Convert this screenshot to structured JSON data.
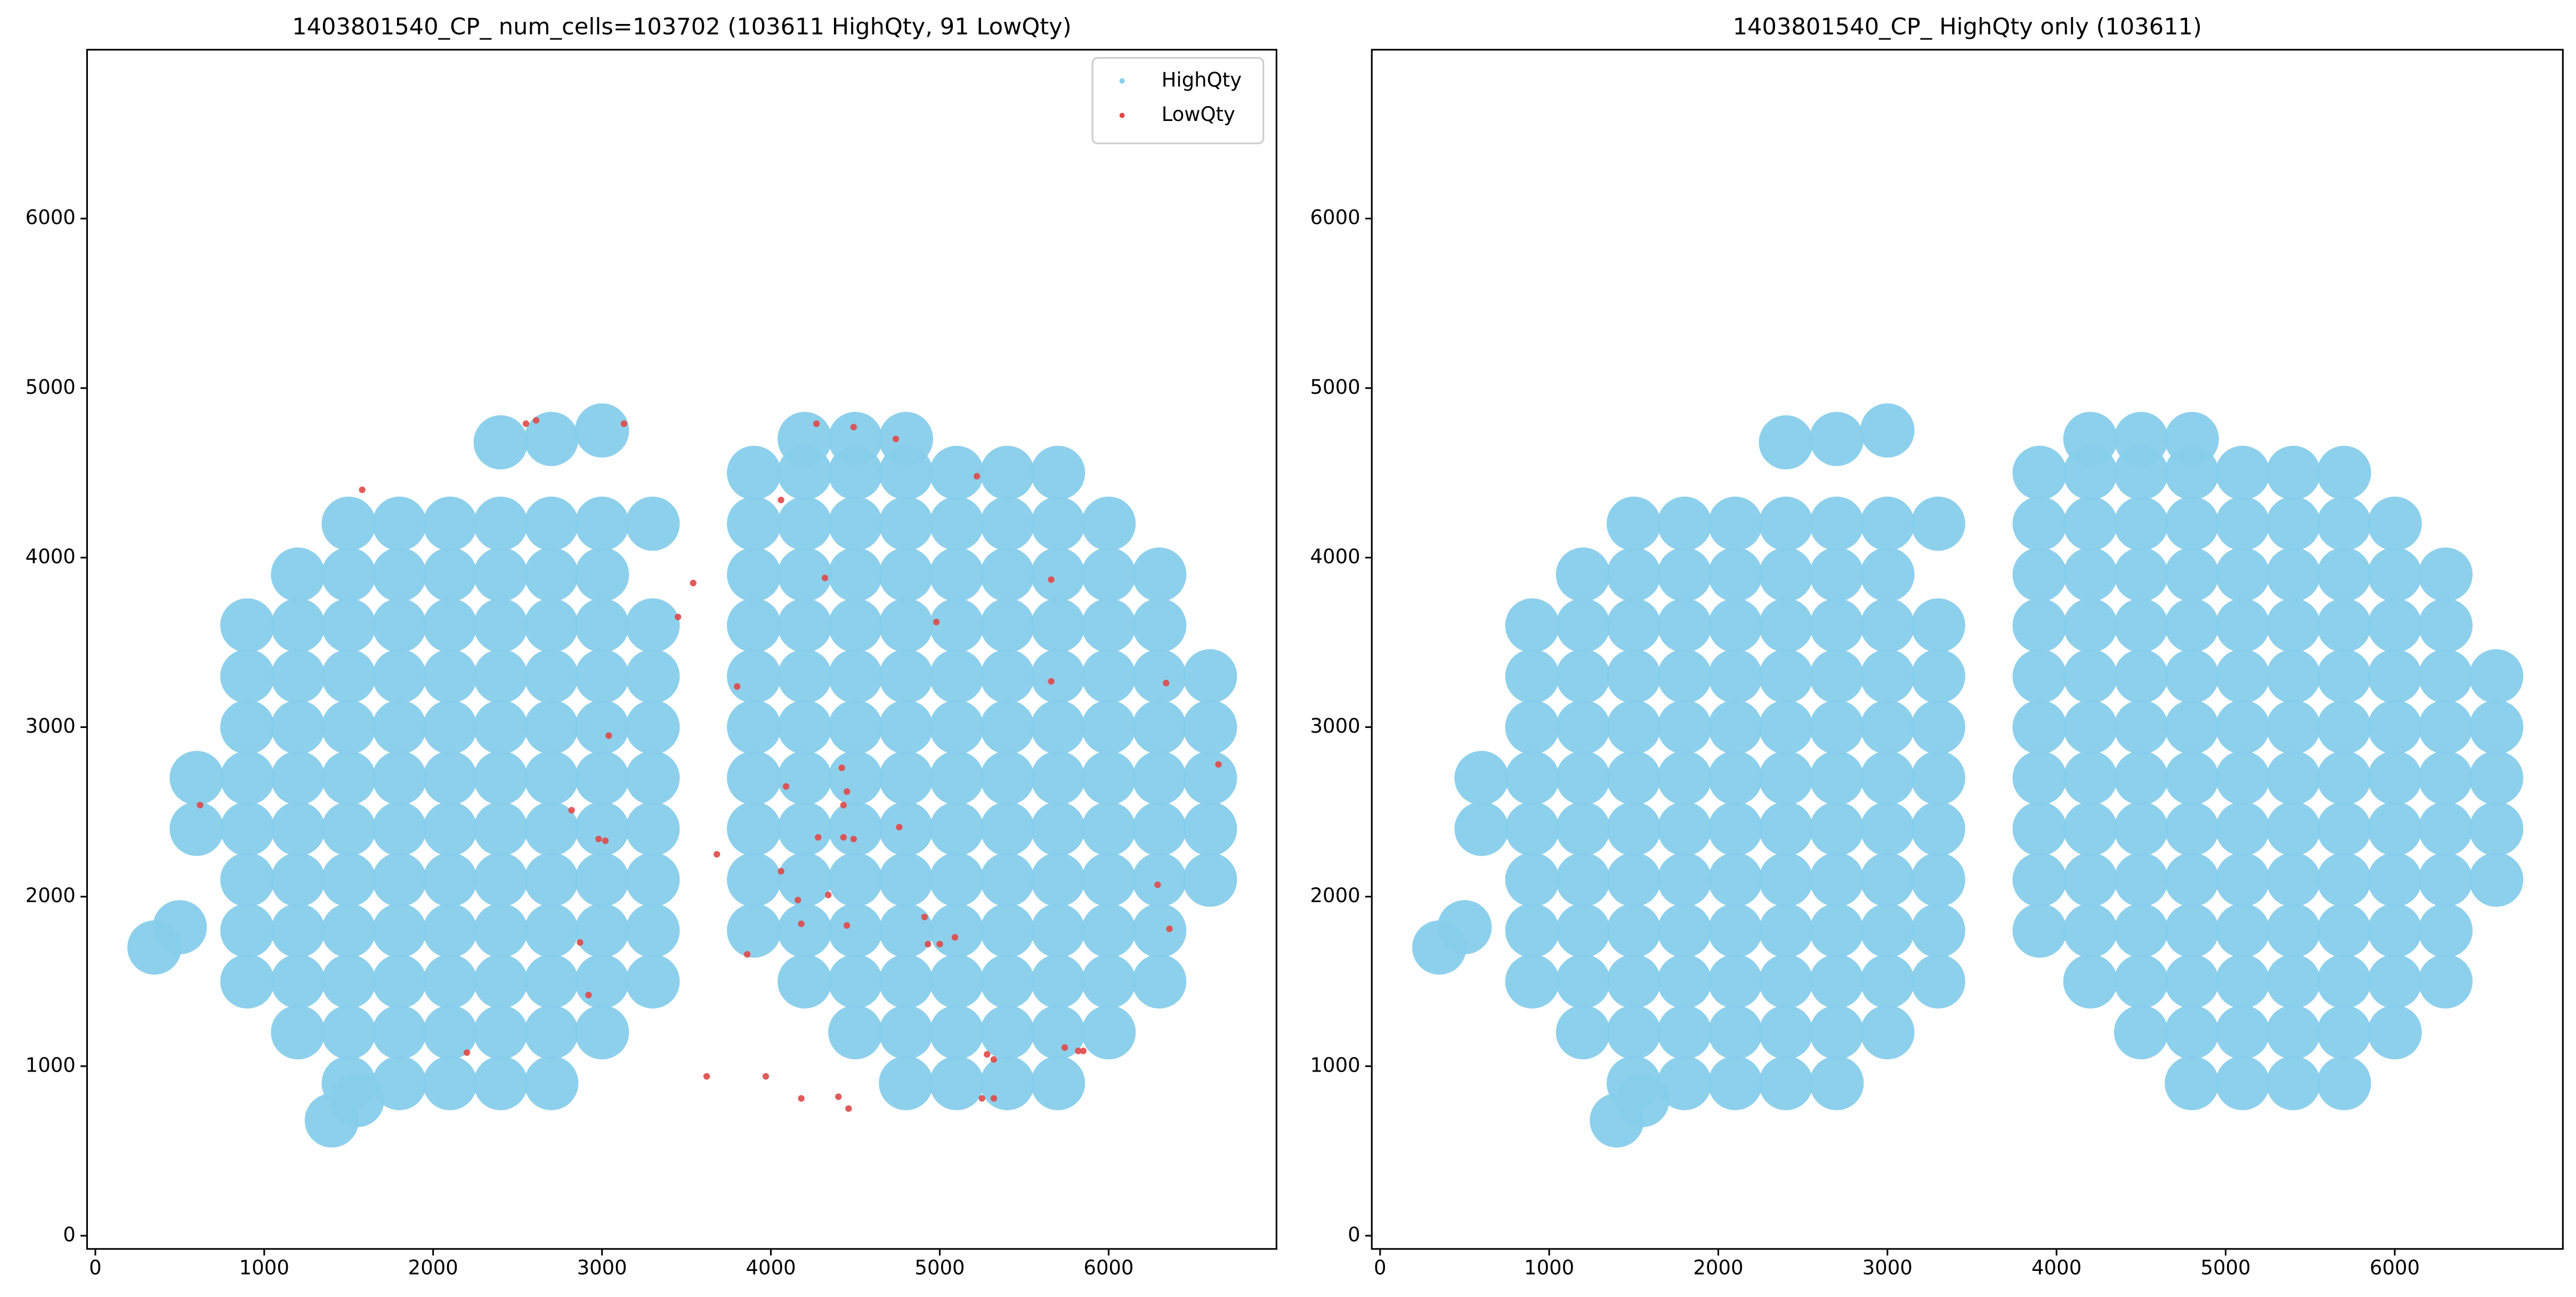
{
  "chart_data": [
    {
      "type": "scatter",
      "title": "1403801540_CP_ num_cells=103702 (103611 HighQty, 91 LowQty)",
      "xlim": [
        -49,
        6994
      ],
      "ylim": [
        -78,
        6996
      ],
      "xticks": [
        0,
        1000,
        2000,
        3000,
        4000,
        5000,
        6000
      ],
      "yticks": [
        0,
        1000,
        2000,
        3000,
        4000,
        5000,
        6000
      ],
      "legend": "upper right",
      "series": [
        {
          "name": "HighQty",
          "color": "#87ceeb",
          "x": [
            1500,
            1800,
            2100,
            2400,
            2700,
            1200,
            1500,
            1800,
            2100,
            2400,
            2700,
            3000,
            900,
            1200,
            1500,
            1800,
            2100,
            2400,
            2700,
            3000,
            3300,
            900,
            1200,
            1500,
            1800,
            2100,
            2400,
            2700,
            3000,
            3300,
            900,
            1200,
            1500,
            1800,
            2100,
            2400,
            2700,
            3000,
            3300,
            600,
            900,
            1200,
            1500,
            1800,
            2100,
            2400,
            2700,
            3000,
            3300,
            600,
            900,
            1200,
            1500,
            1800,
            2100,
            2400,
            2700,
            3000,
            3300,
            900,
            1200,
            1500,
            1800,
            2100,
            2400,
            2700,
            3000,
            3300,
            900,
            1200,
            1500,
            1800,
            2100,
            2400,
            2700,
            3000,
            3300,
            900,
            1200,
            1500,
            1800,
            2100,
            2400,
            2700,
            3000,
            3300,
            1200,
            1500,
            1800,
            2100,
            2400,
            2700,
            3000,
            1500,
            1800,
            2100,
            2400,
            2700,
            3000,
            3300,
            2400,
            2700,
            3000,
            350,
            500,
            1400,
            1550,
            4800,
            5100,
            5400,
            5700,
            4500,
            4800,
            5100,
            5400,
            5700,
            6000,
            4200,
            4500,
            4800,
            5100,
            5400,
            5700,
            6000,
            6300,
            3900,
            4200,
            4500,
            4800,
            5100,
            5400,
            5700,
            6000,
            6300,
            3900,
            4200,
            4500,
            4800,
            5100,
            5400,
            5700,
            6000,
            6300,
            6600,
            3900,
            4200,
            4500,
            4800,
            5100,
            5400,
            5700,
            6000,
            6300,
            6600,
            3900,
            4200,
            4500,
            4800,
            5100,
            5400,
            5700,
            6000,
            6300,
            6600,
            3900,
            4200,
            4500,
            4800,
            5100,
            5400,
            5700,
            6000,
            6300,
            6600,
            3900,
            4200,
            4500,
            4800,
            5100,
            5400,
            5700,
            6000,
            6300,
            6600,
            3900,
            4200,
            4500,
            4800,
            5100,
            5400,
            5700,
            6000,
            6300,
            3900,
            4200,
            4500,
            4800,
            5100,
            5400,
            5700,
            6000,
            6300,
            3900,
            4200,
            4500,
            4800,
            5100,
            5400,
            5700,
            6000,
            3900,
            4200,
            4500,
            4800,
            5100,
            5400,
            5700,
            4200,
            4500,
            4800
          ],
          "values": [
            900,
            900,
            900,
            900,
            900,
            1200,
            1200,
            1200,
            1200,
            1200,
            1200,
            1200,
            1500,
            1500,
            1500,
            1500,
            1500,
            1500,
            1500,
            1500,
            1500,
            1800,
            1800,
            1800,
            1800,
            1800,
            1800,
            1800,
            1800,
            1800,
            2100,
            2100,
            2100,
            2100,
            2100,
            2100,
            2100,
            2100,
            2100,
            2400,
            2400,
            2400,
            2400,
            2400,
            2400,
            2400,
            2400,
            2400,
            2400,
            2700,
            2700,
            2700,
            2700,
            2700,
            2700,
            2700,
            2700,
            2700,
            2700,
            3000,
            3000,
            3000,
            3000,
            3000,
            3000,
            3000,
            3000,
            3000,
            3300,
            3300,
            3300,
            3300,
            3300,
            3300,
            3300,
            3300,
            3300,
            3600,
            3600,
            3600,
            3600,
            3600,
            3600,
            3600,
            3600,
            3600,
            3900,
            3900,
            3900,
            3900,
            3900,
            3900,
            3900,
            4200,
            4200,
            4200,
            4200,
            4200,
            4200,
            4200,
            4680,
            4700,
            4750,
            1700,
            1820,
            680,
            800,
            900,
            900,
            900,
            900,
            1200,
            1200,
            1200,
            1200,
            1200,
            1200,
            1500,
            1500,
            1500,
            1500,
            1500,
            1500,
            1500,
            1500,
            1800,
            1800,
            1800,
            1800,
            1800,
            1800,
            1800,
            1800,
            1800,
            2100,
            2100,
            2100,
            2100,
            2100,
            2100,
            2100,
            2100,
            2100,
            2100,
            2400,
            2400,
            2400,
            2400,
            2400,
            2400,
            2400,
            2400,
            2400,
            2400,
            2700,
            2700,
            2700,
            2700,
            2700,
            2700,
            2700,
            2700,
            2700,
            2700,
            3000,
            3000,
            3000,
            3000,
            3000,
            3000,
            3000,
            3000,
            3000,
            3000,
            3300,
            3300,
            3300,
            3300,
            3300,
            3300,
            3300,
            3300,
            3300,
            3300,
            3600,
            3600,
            3600,
            3600,
            3600,
            3600,
            3600,
            3600,
            3600,
            3900,
            3900,
            3900,
            3900,
            3900,
            3900,
            3900,
            3900,
            3900,
            4200,
            4200,
            4200,
            4200,
            4200,
            4200,
            4200,
            4200,
            4500,
            4500,
            4500,
            4500,
            4500,
            4500,
            4500,
            4700,
            4700,
            4700
          ]
        },
        {
          "name": "LowQty",
          "color": "#e04848",
          "x": [
            2550,
            2610,
            3130,
            1580,
            620,
            4270,
            4490,
            4740,
            5220,
            4060,
            4320,
            4980,
            5660,
            5660,
            6340,
            6650,
            3040,
            2820,
            2980,
            3020,
            4420,
            4450,
            4430,
            4280,
            4430,
            4490,
            4760,
            4060,
            4180,
            4450,
            4910,
            4930,
            5000,
            2870,
            2920,
            3860,
            3620,
            3970,
            4180,
            4400,
            4460,
            5280,
            5320,
            5740,
            5820,
            5850,
            5250,
            5320,
            3540,
            3450,
            2200,
            6290,
            6360,
            3800,
            3680,
            4090,
            4340,
            4160,
            5090
          ],
          "values": [
            4790,
            4810,
            4790,
            4400,
            2540,
            4790,
            4770,
            4700,
            4480,
            4340,
            3880,
            3620,
            3870,
            3270,
            3260,
            2780,
            2950,
            2510,
            2340,
            2330,
            2760,
            2620,
            2540,
            2350,
            2350,
            2340,
            2410,
            2150,
            1840,
            1830,
            1880,
            1720,
            1720,
            1730,
            1420,
            1660,
            940,
            940,
            810,
            820,
            750,
            1070,
            1040,
            1110,
            1090,
            1090,
            810,
            810,
            3850,
            3650,
            1080,
            2070,
            1810,
            3240,
            2250,
            2650,
            2010,
            1980,
            1760
          ]
        }
      ]
    },
    {
      "type": "scatter",
      "title": "1403801540_CP_ HighQty only (103611)",
      "xlim": [
        -49,
        6994
      ],
      "ylim": [
        -78,
        6996
      ],
      "xticks": [
        0,
        1000,
        2000,
        3000,
        4000,
        5000,
        6000
      ],
      "yticks": [
        0,
        1000,
        2000,
        3000,
        4000,
        5000,
        6000
      ],
      "series": [
        {
          "color": "#87ceeb",
          "x": [
            1500,
            1800,
            2100,
            2400,
            2700,
            1200,
            1500,
            1800,
            2100,
            2400,
            2700,
            3000,
            900,
            1200,
            1500,
            1800,
            2100,
            2400,
            2700,
            3000,
            3300,
            900,
            1200,
            1500,
            1800,
            2100,
            2400,
            2700,
            3000,
            3300,
            900,
            1200,
            1500,
            1800,
            2100,
            2400,
            2700,
            3000,
            3300,
            600,
            900,
            1200,
            1500,
            1800,
            2100,
            2400,
            2700,
            3000,
            3300,
            600,
            900,
            1200,
            1500,
            1800,
            2100,
            2400,
            2700,
            3000,
            3300,
            900,
            1200,
            1500,
            1800,
            2100,
            2400,
            2700,
            3000,
            3300,
            900,
            1200,
            1500,
            1800,
            2100,
            2400,
            2700,
            3000,
            3300,
            900,
            1200,
            1500,
            1800,
            2100,
            2400,
            2700,
            3000,
            3300,
            1200,
            1500,
            1800,
            2100,
            2400,
            2700,
            3000,
            1500,
            1800,
            2100,
            2400,
            2700,
            3000,
            3300,
            2400,
            2700,
            3000,
            350,
            500,
            1400,
            1550,
            4800,
            5100,
            5400,
            5700,
            4500,
            4800,
            5100,
            5400,
            5700,
            6000,
            4200,
            4500,
            4800,
            5100,
            5400,
            5700,
            6000,
            6300,
            3900,
            4200,
            4500,
            4800,
            5100,
            5400,
            5700,
            6000,
            6300,
            3900,
            4200,
            4500,
            4800,
            5100,
            5400,
            5700,
            6000,
            6300,
            6600,
            3900,
            4200,
            4500,
            4800,
            5100,
            5400,
            5700,
            6000,
            6300,
            6600,
            3900,
            4200,
            4500,
            4800,
            5100,
            5400,
            5700,
            6000,
            6300,
            6600,
            3900,
            4200,
            4500,
            4800,
            5100,
            5400,
            5700,
            6000,
            6300,
            6600,
            3900,
            4200,
            4500,
            4800,
            5100,
            5400,
            5700,
            6000,
            6300,
            6600,
            3900,
            4200,
            4500,
            4800,
            5100,
            5400,
            5700,
            6000,
            6300,
            3900,
            4200,
            4500,
            4800,
            5100,
            5400,
            5700,
            6000,
            6300,
            3900,
            4200,
            4500,
            4800,
            5100,
            5400,
            5700,
            6000,
            3900,
            4200,
            4500,
            4800,
            5100,
            5400,
            5700,
            4200,
            4500,
            4800
          ],
          "values": [
            900,
            900,
            900,
            900,
            900,
            1200,
            1200,
            1200,
            1200,
            1200,
            1200,
            1200,
            1500,
            1500,
            1500,
            1500,
            1500,
            1500,
            1500,
            1500,
            1500,
            1800,
            1800,
            1800,
            1800,
            1800,
            1800,
            1800,
            1800,
            1800,
            2100,
            2100,
            2100,
            2100,
            2100,
            2100,
            2100,
            2100,
            2100,
            2400,
            2400,
            2400,
            2400,
            2400,
            2400,
            2400,
            2400,
            2400,
            2400,
            2700,
            2700,
            2700,
            2700,
            2700,
            2700,
            2700,
            2700,
            2700,
            2700,
            3000,
            3000,
            3000,
            3000,
            3000,
            3000,
            3000,
            3000,
            3000,
            3300,
            3300,
            3300,
            3300,
            3300,
            3300,
            3300,
            3300,
            3300,
            3600,
            3600,
            3600,
            3600,
            3600,
            3600,
            3600,
            3600,
            3600,
            3900,
            3900,
            3900,
            3900,
            3900,
            3900,
            3900,
            4200,
            4200,
            4200,
            4200,
            4200,
            4200,
            4200,
            4680,
            4700,
            4750,
            1700,
            1820,
            680,
            800,
            900,
            900,
            900,
            900,
            1200,
            1200,
            1200,
            1200,
            1200,
            1200,
            1500,
            1500,
            1500,
            1500,
            1500,
            1500,
            1500,
            1500,
            1800,
            1800,
            1800,
            1800,
            1800,
            1800,
            1800,
            1800,
            1800,
            2100,
            2100,
            2100,
            2100,
            2100,
            2100,
            2100,
            2100,
            2100,
            2100,
            2400,
            2400,
            2400,
            2400,
            2400,
            2400,
            2400,
            2400,
            2400,
            2400,
            2700,
            2700,
            2700,
            2700,
            2700,
            2700,
            2700,
            2700,
            2700,
            2700,
            3000,
            3000,
            3000,
            3000,
            3000,
            3000,
            3000,
            3000,
            3000,
            3000,
            3300,
            3300,
            3300,
            3300,
            3300,
            3300,
            3300,
            3300,
            3300,
            3300,
            3600,
            3600,
            3600,
            3600,
            3600,
            3600,
            3600,
            3600,
            3600,
            3900,
            3900,
            3900,
            3900,
            3900,
            3900,
            3900,
            3900,
            3900,
            4200,
            4200,
            4200,
            4200,
            4200,
            4200,
            4200,
            4200,
            4500,
            4500,
            4500,
            4500,
            4500,
            4500,
            4500,
            4700,
            4700,
            4700
          ]
        }
      ]
    }
  ]
}
